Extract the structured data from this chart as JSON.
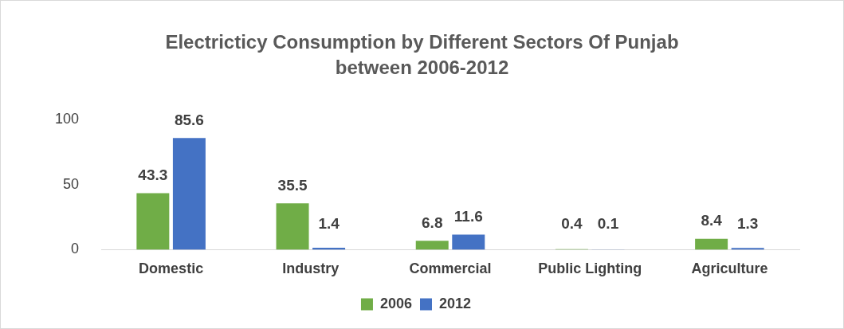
{
  "chart_data": {
    "type": "bar",
    "title": "Electricticy Consumption by Different Sectors Of Punjab between 2006-2012",
    "categories": [
      "Domestic",
      "Industry",
      "Commercial",
      "Public Lighting",
      "Agriculture"
    ],
    "series": [
      {
        "name": "2006",
        "color": "#70ad47",
        "values": [
          43.3,
          35.5,
          6.8,
          0.4,
          8.4
        ]
      },
      {
        "name": "2012",
        "color": "#4472c4",
        "values": [
          85.6,
          1.4,
          11.6,
          0.1,
          1.3
        ]
      }
    ],
    "ylim": [
      0,
      100
    ],
    "yticks": [
      0,
      50,
      100
    ],
    "grid": false,
    "legend": "bottom",
    "data_labels": true
  }
}
